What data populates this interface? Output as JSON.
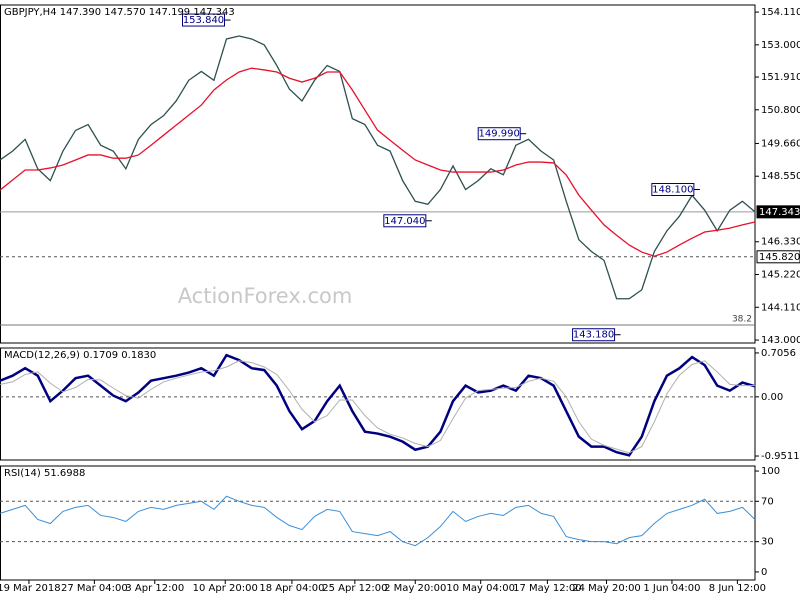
{
  "chart_data": [
    {
      "type": "line",
      "title": "GBPJPY,H4 147.390 147.570 147.199 147.343",
      "watermark": "ActionForex.com",
      "xlim": [
        0,
        60
      ],
      "ylim": [
        142.9,
        154.35
      ],
      "yticks": [
        {
          "value": 154.11,
          "label": "154.110"
        },
        {
          "value": 153,
          "label": "153.000"
        },
        {
          "value": 151.91,
          "label": "151.910"
        },
        {
          "value": 150.8,
          "label": "150.800"
        },
        {
          "value": 149.66,
          "label": "149.660"
        },
        {
          "value": 148.55,
          "label": "148.550"
        },
        {
          "value": 146.33,
          "label": "146.330"
        },
        {
          "value": 145.22,
          "label": "145.220"
        },
        {
          "value": 144.11,
          "label": "144.110"
        },
        {
          "value": 143,
          "label": "143.000"
        }
      ],
      "series": [
        {
          "color": "#2f4f4f",
          "values": [
            149.1,
            149.4,
            149.8,
            148.8,
            148.4,
            149.4,
            150.1,
            150.3,
            149.6,
            149.4,
            148.8,
            149.8,
            150.3,
            150.6,
            151.1,
            151.8,
            152.1,
            151.8,
            153.2,
            153.3,
            153.2,
            153.0,
            152.3,
            151.5,
            151.1,
            151.8,
            152.3,
            152.1,
            150.5,
            150.3,
            149.6,
            149.4,
            148.4,
            147.7,
            147.6,
            148.1,
            148.9,
            148.1,
            148.4,
            148.8,
            148.6,
            149.6,
            149.8,
            149.4,
            149.1,
            147.7,
            146.4,
            146.0,
            145.7,
            144.4,
            144.4,
            144.7,
            146.0,
            146.7,
            147.2,
            147.9,
            147.4,
            146.7,
            147.4,
            147.7,
            147.343
          ]
        },
        {
          "color": "#e8102a",
          "values": [
            148.08,
            148.42,
            148.76,
            148.76,
            148.83,
            148.93,
            149.1,
            149.27,
            149.27,
            149.16,
            149.16,
            149.27,
            149.6,
            149.94,
            150.28,
            150.62,
            150.96,
            151.47,
            151.81,
            152.08,
            152.21,
            152.15,
            152.08,
            151.87,
            151.74,
            151.87,
            152.08,
            152.08,
            151.47,
            150.79,
            150.11,
            149.77,
            149.43,
            149.1,
            148.93,
            148.76,
            148.69,
            148.69,
            148.69,
            148.69,
            148.76,
            148.93,
            149.03,
            149.03,
            149.0,
            148.59,
            147.91,
            147.4,
            146.9,
            146.55,
            146.22,
            145.98,
            145.84,
            145.98,
            146.22,
            146.45,
            146.66,
            146.72,
            146.79,
            146.9,
            147.0
          ]
        }
      ],
      "levels": [
        {
          "value": 147.343,
          "style": "solid"
        },
        {
          "value": 145.82,
          "label": "145.820",
          "style": "dashed"
        }
      ],
      "fib": {
        "name": "38.2",
        "value": 143.51
      },
      "annotations": [
        {
          "value": 153.84,
          "label": "153.840",
          "x": 18
        },
        {
          "value": 149.99,
          "label": "149.990",
          "x": 41.5
        },
        {
          "value": 147.04,
          "label": "147.040",
          "x": 34
        },
        {
          "value": 148.1,
          "label": "148.100",
          "x": 55.3
        },
        {
          "value": 143.18,
          "label": "143.180",
          "x": 49
        }
      ]
    },
    {
      "type": "line",
      "title": "MACD(12,26,9) 0.1709 0.1830",
      "xlim": [
        0,
        60
      ],
      "ylim": [
        -1.015,
        0.785
      ],
      "yticks": [
        0.7056,
        {
          "value": 0,
          "label": "0.00"
        },
        -0.9511
      ],
      "levels": [
        {
          "value": 0,
          "style": "dashed"
        }
      ],
      "series": [
        {
          "color": "#000080",
          "width": 2.5,
          "values": [
            0.26,
            0.34,
            0.46,
            0.34,
            -0.07,
            0.1,
            0.3,
            0.34,
            0.18,
            0.02,
            -0.07,
            0.07,
            0.26,
            0.3,
            0.34,
            0.39,
            0.46,
            0.34,
            0.67,
            0.59,
            0.46,
            0.43,
            0.18,
            -0.23,
            -0.52,
            -0.39,
            -0.07,
            0.18,
            -0.23,
            -0.56,
            -0.59,
            -0.64,
            -0.72,
            -0.85,
            -0.8,
            -0.56,
            -0.07,
            0.18,
            0.07,
            0.1,
            0.18,
            0.1,
            0.34,
            0.3,
            0.18,
            -0.23,
            -0.64,
            -0.8,
            -0.8,
            -0.89,
            -0.94,
            -0.64,
            -0.07,
            0.34,
            0.46,
            0.64,
            0.51,
            0.18,
            0.1,
            0.23,
            0.17
          ]
        },
        {
          "color": "#b0b0b0",
          "width": 1,
          "values": [
            0.2,
            0.24,
            0.36,
            0.4,
            0.22,
            0.08,
            0.15,
            0.28,
            0.27,
            0.14,
            0.02,
            -0.02,
            0.12,
            0.24,
            0.3,
            0.35,
            0.4,
            0.42,
            0.48,
            0.58,
            0.55,
            0.48,
            0.36,
            0.1,
            -0.2,
            -0.4,
            -0.3,
            -0.05,
            -0.05,
            -0.3,
            -0.5,
            -0.6,
            -0.66,
            -0.75,
            -0.8,
            -0.7,
            -0.35,
            -0.02,
            0.1,
            0.12,
            0.14,
            0.15,
            0.25,
            0.3,
            0.25,
            0.0,
            -0.4,
            -0.68,
            -0.78,
            -0.84,
            -0.9,
            -0.8,
            -0.4,
            0.05,
            0.35,
            0.52,
            0.58,
            0.4,
            0.2,
            0.18,
            0.18
          ]
        }
      ]
    },
    {
      "type": "line",
      "title": "RSI(14) 51.6988",
      "xlim": [
        0,
        60
      ],
      "ylim": [
        -8,
        105
      ],
      "yticks": [
        100,
        70,
        30,
        0
      ],
      "levels": [
        {
          "value": 70,
          "style": "dashed"
        },
        {
          "value": 30,
          "style": "dashed"
        }
      ],
      "series": [
        {
          "color": "#3a8fd6",
          "width": 1,
          "values": [
            58,
            62,
            66,
            52,
            48,
            60,
            64,
            66,
            56,
            54,
            50,
            60,
            64,
            62,
            66,
            68,
            70,
            62,
            75,
            70,
            66,
            64,
            54,
            46,
            42,
            55,
            62,
            60,
            40,
            38,
            36,
            40,
            30,
            26,
            34,
            45,
            60,
            50,
            55,
            58,
            56,
            64,
            66,
            58,
            55,
            35,
            32,
            30,
            30,
            28,
            34,
            36,
            48,
            58,
            62,
            66,
            72,
            58,
            60,
            64,
            52
          ]
        }
      ],
      "xticks": [
        {
          "value": 2.3,
          "label": "19 Mar 2018"
        },
        {
          "value": 7.5,
          "label": "27 Mar 04:00"
        },
        {
          "value": 12.3,
          "label": "3 Apr 12:00"
        },
        {
          "value": 17.9,
          "label": "10 Apr 20:00"
        },
        {
          "value": 23.2,
          "label": "18 Apr 04:00"
        },
        {
          "value": 28.2,
          "label": "25 Apr 12:00"
        },
        {
          "value": 33,
          "label": "2 May 20:00"
        },
        {
          "value": 38.2,
          "label": "10 May 04:00"
        },
        {
          "value": 43.5,
          "label": "17 May 12:00"
        },
        {
          "value": 48.2,
          "label": "24 May 20:00"
        },
        {
          "value": 53.4,
          "label": "1 Jun 04:00"
        },
        {
          "value": 58.6,
          "label": "8 Jun 12:00"
        }
      ]
    }
  ]
}
